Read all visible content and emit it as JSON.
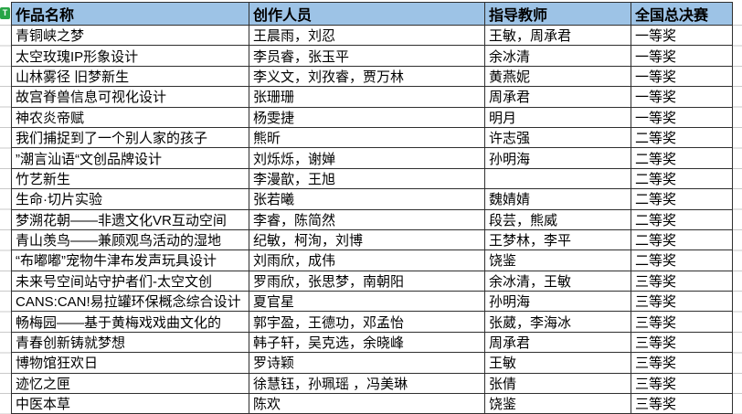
{
  "badge": {
    "label": "T"
  },
  "colors": {
    "header_bg": "#9DC3E6",
    "border_dark": "#2f2f2f",
    "gridline": "#c9c9c9",
    "badge_green": "#27A546"
  },
  "table": {
    "headers": [
      "作品名称",
      "创作人员",
      "指导教师",
      "全国总决赛"
    ],
    "rows": [
      {
        "work": "青铜峡之梦",
        "creators": "王晨雨，刘忍",
        "teachers": "王敏，周承君",
        "award": "一等奖"
      },
      {
        "work": "太空玫瑰IP形象设计",
        "creators": "李员睿，张玉平",
        "teachers": "余冰清",
        "award": "一等奖"
      },
      {
        "work": "山林雾径 旧梦新生",
        "creators": "李义文，刘孜睿，贾万林",
        "teachers": "黄燕妮",
        "award": "一等奖"
      },
      {
        "work": "故宫脊兽信息可视化设计",
        "creators": "张珊珊",
        "teachers": "周承君",
        "award": "一等奖"
      },
      {
        "work": "神农炎帝赋",
        "creators": "杨雯捷",
        "teachers": "明月",
        "award": "一等奖"
      },
      {
        "work": "我们捕捉到了一个别人家的孩子",
        "creators": "熊昕",
        "teachers": "许志强",
        "award": "二等奖"
      },
      {
        "work": "”潮言汕语“文创品牌设计",
        "creators": "刘烁烁，谢婵",
        "teachers": "孙明海",
        "award": "二等奖"
      },
      {
        "work": "竹艺新生",
        "creators": "李漫歆，王旭",
        "teachers": "",
        "award": "二等奖"
      },
      {
        "work": "生命·切片实验",
        "creators": "张若曦",
        "teachers": "魏婧婧",
        "award": "二等奖"
      },
      {
        "work": "梦溯花朝——非遗文化VR互动空间",
        "creators": "李睿，陈简然",
        "teachers": "段芸，熊威",
        "award": "二等奖"
      },
      {
        "work": "青山羡鸟——兼顾观鸟活动的湿地",
        "creators": "纪敏，柯洵，刘博",
        "teachers": "王梦林，李平",
        "award": "二等奖"
      },
      {
        "work": "“布嘟嘟”宠物牛津布发声玩具设计",
        "creators": "刘雨欣，成伟",
        "teachers": "饶鉴",
        "award": "二等奖"
      },
      {
        "work": "未来号空间站守护者们-太空文创",
        "creators": "罗雨欣，张思梦，南朝阳",
        "teachers": "余冰清，王敏",
        "award": "三等奖"
      },
      {
        "work": "CANS:CAN!易拉罐环保概念综合设计",
        "creators": "夏官星",
        "teachers": "孙明海",
        "award": "三等奖"
      },
      {
        "work": "畅梅园——基于黄梅戏戏曲文化的",
        "creators": "郭宇盈，王德功，邓孟怡",
        "teachers": "张葳，李海冰",
        "award": "三等奖"
      },
      {
        "work": "青春创新铸就梦想",
        "creators": "韩子轩，吴克选，余晓峰",
        "teachers": "周承君",
        "award": "三等奖"
      },
      {
        "work": "博物馆狂欢日",
        "creators": "罗诗颖",
        "teachers": "王敏",
        "award": "三等奖"
      },
      {
        "work": "迹忆之匣",
        "creators": "徐慧钰，孙珮瑶 ，冯美琳",
        "teachers": "张倩",
        "award": "三等奖"
      },
      {
        "work": "中医本草",
        "creators": "陈欢",
        "teachers": "饶鉴",
        "award": "三等奖"
      }
    ]
  }
}
